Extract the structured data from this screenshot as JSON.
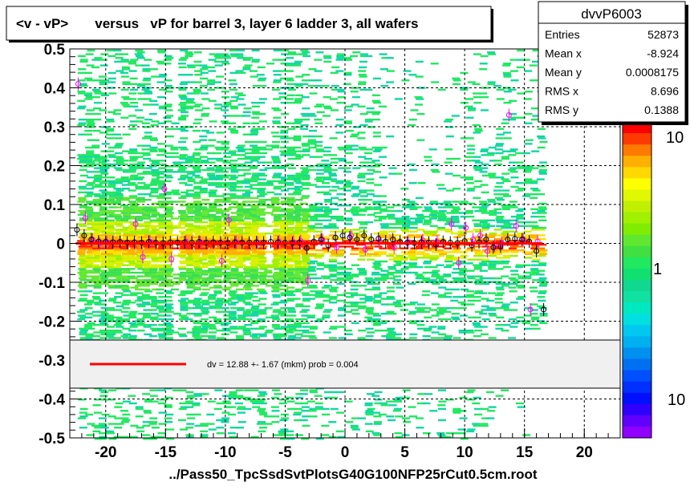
{
  "title": "<v - vP>       versus   vP for barrel 3, layer 6 ladder 3, all wafers",
  "xlabel": "../Pass50_TpcSsdSvtPlotsG40G100NFP25rCut0.5cm.root",
  "stats": {
    "name": "dvvP6003",
    "rows": [
      {
        "label": "Entries",
        "value": "52873"
      },
      {
        "label": "Mean x",
        "value": "-8.924"
      },
      {
        "label": "Mean y",
        "value": "0.0008175"
      },
      {
        "label": "RMS x",
        "value": "8.696"
      },
      {
        "label": "RMS y",
        "value": "0.1388"
      }
    ]
  },
  "fit_legend": "dv =    12.88 +-  1.67 (mkm) prob = 0.004",
  "palette_labels": [
    "10",
    "1",
    "10"
  ],
  "colors": {
    "fit_line": "#ff0000",
    "profile_black": "#000000",
    "profile_magenta": "#ff00ff"
  },
  "chart_data": {
    "type": "heatmap",
    "xlim": [
      -23,
      23
    ],
    "ylim": [
      -0.5,
      0.5
    ],
    "x_ticks": [
      -20,
      -15,
      -10,
      -5,
      0,
      5,
      10,
      15,
      20
    ],
    "y_ticks": [
      -0.5,
      -0.4,
      -0.3,
      -0.2,
      -0.1,
      0,
      0.1,
      0.2,
      0.3,
      0.4,
      0.5
    ],
    "grid": true,
    "fit": {
      "x_range": [
        -22.5,
        16.5
      ],
      "y": 0.0
    },
    "profile_black": {
      "x": [
        -22.4,
        -21.8,
        -21.2,
        -20.6,
        -20,
        -19.4,
        -18.8,
        -18.2,
        -17.6,
        -17,
        -16.4,
        -15.8,
        -15.2,
        -14.6,
        -14,
        -13.4,
        -12.8,
        -12.2,
        -11.6,
        -11,
        -10.4,
        -9.8,
        -9.2,
        -8.6,
        -8,
        -7.4,
        -6.8,
        -6.2,
        -5.6,
        -5,
        -4.4,
        -3.8,
        -3.2,
        -2.6,
        -2,
        -1.4,
        -0.8,
        -0.2,
        0.4,
        1,
        1.6,
        2.2,
        2.8,
        3.4,
        4,
        4.6,
        5.2,
        5.8,
        6.4,
        7,
        7.6,
        8.2,
        8.8,
        9.4,
        10,
        10.6,
        11.2,
        11.8,
        12.4,
        13,
        13.6,
        14.2,
        14.8,
        15.4,
        16,
        16.6
      ],
      "y": [
        0.035,
        0.02,
        0.01,
        0.005,
        0.004,
        0.003,
        0.004,
        0.002,
        0.003,
        0.002,
        0.004,
        0.002,
        0.001,
        0.003,
        0.002,
        0.003,
        0.002,
        0.004,
        0.002,
        0.003,
        0.002,
        0.001,
        0.003,
        0.002,
        0.002,
        0.003,
        0.002,
        0.004,
        0.003,
        0.002,
        0.001,
        0.002,
        -0.012,
        0.005,
        0.01,
        -0.005,
        0.015,
        0.02,
        0.015,
        0.01,
        0.02,
        0.01,
        0.012,
        0.005,
        0.01,
        0.004,
        0.002,
        0.001,
        0.003,
        0.002,
        -0.003,
        0.004,
        0.002,
        0.001,
        0.006,
        -0.005,
        0.003,
        0.01,
        -0.01,
        -0.008,
        0.01,
        0.012,
        0.01,
        0.005,
        -0.02,
        -0.17
      ]
    },
    "profile_magenta": {
      "x": [
        -22.3,
        -21.7,
        -21.1,
        -20.5,
        -19.9,
        -17.5,
        -16.9,
        -16.3,
        -15.1,
        -14.5,
        -13.3,
        -12.1,
        -10.3,
        -9.7,
        -9.1,
        -7.3,
        -5.5,
        -4.3,
        -3.7,
        -3.1,
        -1.9,
        -0.7,
        0.5,
        1.7,
        2.9,
        4.1,
        5.3,
        6.5,
        7.7,
        8.9,
        9.5,
        10.1,
        10.7,
        11.3,
        11.9,
        12.5,
        13.1,
        13.7,
        14.3,
        14.9,
        15.5,
        16.1
      ],
      "y": [
        0.41,
        0.065,
        0.01,
        0.0,
        0.003,
        0.05,
        -0.035,
        0.005,
        0.14,
        -0.04,
        0.005,
        0.003,
        -0.045,
        0.06,
        0.003,
        0.002,
        0.004,
        0.003,
        0.006,
        -0.095,
        0.01,
        -0.01,
        0.02,
        -0.015,
        0.005,
        -0.01,
        0.003,
        0.008,
        0.004,
        0.05,
        -0.05,
        0.04,
        0.01,
        0.02,
        -0.02,
        -0.005,
        0.0,
        0.33,
        0.045,
        0.01,
        -0.17,
        0.005
      ]
    }
  }
}
